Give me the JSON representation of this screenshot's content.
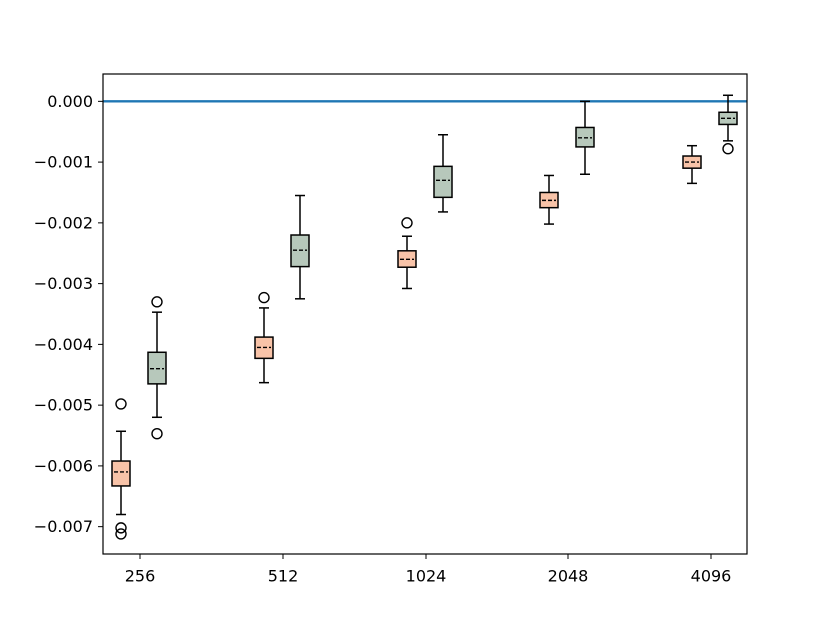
{
  "chart_data": {
    "type": "box",
    "title": "",
    "xlabel": "",
    "ylabel": "",
    "categories": [
      "256",
      "512",
      "1024",
      "2048",
      "4096"
    ],
    "ylim": [
      -0.00745,
      0.00045
    ],
    "yticks": [
      "0.000",
      "−0.001",
      "−0.002",
      "−0.003",
      "−0.004",
      "−0.005",
      "−0.006",
      "−0.007"
    ],
    "ytick_values": [
      0,
      -0.001,
      -0.002,
      -0.003,
      -0.004,
      -0.005,
      -0.006,
      -0.007
    ],
    "reference_line": {
      "y": 0.0,
      "color": "#1f77b4"
    },
    "grid": false,
    "series": [
      {
        "color": "#f8c3a8",
        "boxes": [
          {
            "category": "256",
            "whisker_low": -0.0068,
            "q1": -0.00633,
            "median": -0.0061,
            "q3": -0.00592,
            "whisker_high": -0.00543,
            "outliers": [
              -0.00498,
              -0.00702,
              -0.00712
            ]
          },
          {
            "category": "512",
            "whisker_low": -0.00463,
            "q1": -0.00423,
            "median": -0.00405,
            "q3": -0.00388,
            "whisker_high": -0.0034,
            "outliers": [
              -0.00323
            ]
          },
          {
            "category": "1024",
            "whisker_low": -0.00308,
            "q1": -0.00273,
            "median": -0.0026,
            "q3": -0.00246,
            "whisker_high": -0.00222,
            "outliers": [
              -0.002
            ]
          },
          {
            "category": "2048",
            "whisker_low": -0.00202,
            "q1": -0.00175,
            "median": -0.00163,
            "q3": -0.0015,
            "whisker_high": -0.00122,
            "outliers": []
          },
          {
            "category": "4096",
            "whisker_low": -0.00135,
            "q1": -0.0011,
            "median": -0.001,
            "q3": -0.0009,
            "whisker_high": -0.00073,
            "outliers": []
          }
        ]
      },
      {
        "color": "#b7c8bb",
        "boxes": [
          {
            "category": "256",
            "whisker_low": -0.0052,
            "q1": -0.00465,
            "median": -0.0044,
            "q3": -0.00413,
            "whisker_high": -0.00347,
            "outliers": [
              -0.0033,
              -0.00547
            ]
          },
          {
            "category": "512",
            "whisker_low": -0.00325,
            "q1": -0.00272,
            "median": -0.00245,
            "q3": -0.0022,
            "whisker_high": -0.00155,
            "outliers": []
          },
          {
            "category": "1024",
            "whisker_low": -0.00182,
            "q1": -0.00158,
            "median": -0.0013,
            "q3": -0.00107,
            "whisker_high": -0.00055,
            "outliers": []
          },
          {
            "category": "2048",
            "whisker_low": -0.0012,
            "q1": -0.00075,
            "median": -0.0006,
            "q3": -0.00043,
            "whisker_high": 0.0,
            "outliers": []
          },
          {
            "category": "4096",
            "whisker_low": -0.00065,
            "q1": -0.00038,
            "median": -0.00028,
            "q3": -0.00018,
            "whisker_high": 0.0001,
            "outliers": [
              -0.00078
            ]
          }
        ]
      }
    ]
  }
}
